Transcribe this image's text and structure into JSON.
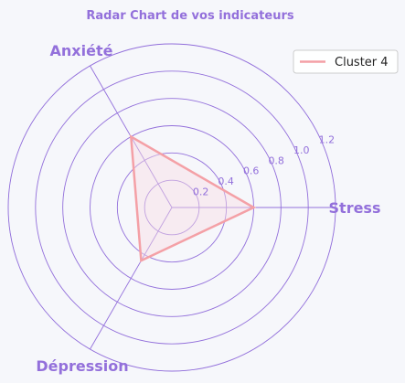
{
  "chart_data": {
    "type": "radar",
    "title": "Radar Chart de vos indicateurs",
    "axes": [
      "Stress",
      "Anxiété",
      "Dépression"
    ],
    "ticks": [
      "0.2",
      "0.4",
      "0.6",
      "0.8",
      "1.0",
      "1.2"
    ],
    "rlim": [
      0,
      1.2
    ],
    "grid": true,
    "legend_position": "top-right",
    "series": [
      {
        "name": "Cluster 4",
        "values": [
          0.6,
          0.6,
          0.45
        ],
        "color": "#f4a0a6",
        "fill": "#f9dbe4"
      }
    ],
    "colors": {
      "accent": "#9370db",
      "grid": "#9370db",
      "background": "#f6f7fb"
    }
  }
}
